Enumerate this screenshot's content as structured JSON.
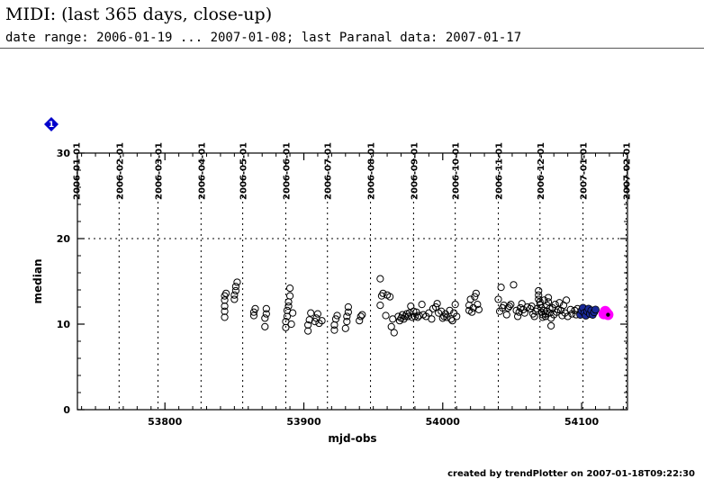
{
  "header": {
    "title": "MIDI: (last 365 days, close-up)",
    "subtitle": "date range: 2006-01-19 ... 2007-01-08; last Paranal data: 2007-01-17"
  },
  "footer": {
    "text": "created by trendPlotter on 2007-01-18T09:22:30"
  },
  "marker": {
    "label": "1",
    "color": "#0000cc"
  },
  "chart_data": {
    "type": "scatter",
    "xlabel": "mjd-obs",
    "ylabel": "median",
    "xlim": [
      53737,
      54133
    ],
    "ylim": [
      0,
      30
    ],
    "x_ticks": [
      53800,
      53900,
      54000,
      54100
    ],
    "x_tick_labels": [
      "53800",
      "53900",
      "54000",
      "54100"
    ],
    "y_ticks": [
      0,
      10,
      20,
      30
    ],
    "y_tick_labels": [
      "0",
      "10",
      "20",
      "30"
    ],
    "reference_line_y": 20,
    "month_lines": [
      {
        "mjd": 53736,
        "label": "2006-01-01"
      },
      {
        "mjd": 53767,
        "label": "2006-02-01"
      },
      {
        "mjd": 53795,
        "label": "2006-03-01"
      },
      {
        "mjd": 53826,
        "label": "2006-04-01"
      },
      {
        "mjd": 53856,
        "label": "2006-05-01"
      },
      {
        "mjd": 53887,
        "label": "2006-06-01"
      },
      {
        "mjd": 53917,
        "label": "2006-07-01"
      },
      {
        "mjd": 53948,
        "label": "2006-08-01"
      },
      {
        "mjd": 53979,
        "label": "2006-09-01"
      },
      {
        "mjd": 54009,
        "label": "2006-10-01"
      },
      {
        "mjd": 54040,
        "label": "2006-11-01"
      },
      {
        "mjd": 54070,
        "label": "2006-12-01"
      },
      {
        "mjd": 54101,
        "label": "2007-01-01"
      },
      {
        "mjd": 54132,
        "label": "2007-02-01"
      }
    ],
    "colors": {
      "recent": "#1a2a9a",
      "latest": "#ff00ff",
      "grid": "#000000"
    },
    "series": [
      {
        "style": "open",
        "points": [
          [
            53843,
            10.8
          ],
          [
            53843,
            11.5
          ],
          [
            53843,
            12.1
          ],
          [
            53843,
            12.8
          ],
          [
            53843,
            13.3
          ],
          [
            53844,
            13.6
          ],
          [
            53850,
            12.9
          ],
          [
            53850,
            13.4
          ],
          [
            53851,
            13.9
          ],
          [
            53851,
            14.4
          ],
          [
            53852,
            14.9
          ],
          [
            53864,
            11.0
          ],
          [
            53864,
            11.4
          ],
          [
            53865,
            11.8
          ],
          [
            53872,
            9.7
          ],
          [
            53872,
            10.7
          ],
          [
            53873,
            11.2
          ],
          [
            53873,
            11.8
          ],
          [
            53887,
            9.6
          ],
          [
            53887,
            10.3
          ],
          [
            53888,
            10.9
          ],
          [
            53888,
            11.6
          ],
          [
            53889,
            12.1
          ],
          [
            53889,
            12.6
          ],
          [
            53890,
            13.3
          ],
          [
            53890,
            14.2
          ],
          [
            53891,
            10.0
          ],
          [
            53892,
            11.3
          ],
          [
            53903,
            9.2
          ],
          [
            53903,
            9.9
          ],
          [
            53904,
            10.5
          ],
          [
            53905,
            11.3
          ],
          [
            53908,
            10.3
          ],
          [
            53909,
            10.7
          ],
          [
            53910,
            11.2
          ],
          [
            53911,
            10.1
          ],
          [
            53913,
            10.4
          ],
          [
            53922,
            9.3
          ],
          [
            53922,
            9.9
          ],
          [
            53923,
            10.6
          ],
          [
            53924,
            11.0
          ],
          [
            53930,
            9.5
          ],
          [
            53931,
            10.3
          ],
          [
            53931,
            10.9
          ],
          [
            53932,
            11.4
          ],
          [
            53932,
            12.0
          ],
          [
            53940,
            10.4
          ],
          [
            53941,
            10.9
          ],
          [
            53942,
            11.1
          ],
          [
            53955,
            15.3
          ],
          [
            53955,
            12.2
          ],
          [
            53956,
            13.3
          ],
          [
            53957,
            13.6
          ],
          [
            53959,
            11.0
          ],
          [
            53960,
            13.4
          ],
          [
            53962,
            13.2
          ],
          [
            53963,
            9.7
          ],
          [
            53964,
            10.6
          ],
          [
            53965,
            9.0
          ],
          [
            53968,
            10.9
          ],
          [
            53969,
            10.4
          ],
          [
            53970,
            10.7
          ],
          [
            53971,
            11.1
          ],
          [
            53972,
            10.6
          ],
          [
            53973,
            10.9
          ],
          [
            53974,
            11.2
          ],
          [
            53975,
            10.9
          ],
          [
            53976,
            11.3
          ],
          [
            53977,
            12.1
          ],
          [
            53978,
            10.8
          ],
          [
            53979,
            11.5
          ],
          [
            53980,
            10.9
          ],
          [
            53981,
            11.4
          ],
          [
            53982,
            10.8
          ],
          [
            53983,
            11.0
          ],
          [
            53985,
            12.3
          ],
          [
            53986,
            11.1
          ],
          [
            53988,
            10.9
          ],
          [
            53990,
            11.3
          ],
          [
            53992,
            10.6
          ],
          [
            53993,
            11.8
          ],
          [
            53995,
            12.0
          ],
          [
            53996,
            12.4
          ],
          [
            53997,
            11.3
          ],
          [
            53999,
            11.5
          ],
          [
            54000,
            10.7
          ],
          [
            54001,
            10.9
          ],
          [
            54002,
            11.2
          ],
          [
            54003,
            10.8
          ],
          [
            54005,
            11.6
          ],
          [
            54006,
            10.6
          ],
          [
            54007,
            10.4
          ],
          [
            54008,
            11.3
          ],
          [
            54009,
            12.3
          ],
          [
            54010,
            10.9
          ],
          [
            54019,
            11.6
          ],
          [
            54019,
            12.2
          ],
          [
            54020,
            12.9
          ],
          [
            54021,
            11.4
          ],
          [
            54022,
            11.9
          ],
          [
            54023,
            13.2
          ],
          [
            54024,
            13.6
          ],
          [
            54025,
            12.3
          ],
          [
            54026,
            11.7
          ],
          [
            54040,
            12.9
          ],
          [
            54041,
            11.5
          ],
          [
            54042,
            14.3
          ],
          [
            54043,
            11.9
          ],
          [
            54044,
            12.2
          ],
          [
            54046,
            11.1
          ],
          [
            54047,
            11.9
          ],
          [
            54048,
            12.1
          ],
          [
            54049,
            12.3
          ],
          [
            54051,
            14.6
          ],
          [
            54053,
            11.6
          ],
          [
            54054,
            10.9
          ],
          [
            54055,
            11.4
          ],
          [
            54056,
            11.9
          ],
          [
            54057,
            12.4
          ],
          [
            54058,
            11.7
          ],
          [
            54059,
            11.3
          ],
          [
            54061,
            12.0
          ],
          [
            54063,
            11.8
          ],
          [
            54064,
            12.1
          ],
          [
            54065,
            11.2
          ],
          [
            54066,
            10.9
          ],
          [
            54067,
            11.5
          ],
          [
            54068,
            11.8
          ],
          [
            54069,
            13.9
          ],
          [
            54069,
            13.4
          ],
          [
            54069,
            12.9
          ],
          [
            54070,
            12.6
          ],
          [
            54070,
            12.3
          ],
          [
            54071,
            11.9
          ],
          [
            54071,
            11.4
          ],
          [
            54072,
            11.1
          ],
          [
            54072,
            10.8
          ],
          [
            54073,
            11.6
          ],
          [
            54073,
            12.8
          ],
          [
            54074,
            11.2
          ],
          [
            54074,
            10.9
          ],
          [
            54075,
            11.5
          ],
          [
            54075,
            12.2
          ],
          [
            54076,
            13.1
          ],
          [
            54076,
            12.6
          ],
          [
            54077,
            11.8
          ],
          [
            54077,
            11.3
          ],
          [
            54078,
            10.7
          ],
          [
            54078,
            9.8
          ],
          [
            54079,
            11.9
          ],
          [
            54080,
            11.1
          ],
          [
            54081,
            12.3
          ],
          [
            54082,
            11.4
          ],
          [
            54083,
            11.7
          ],
          [
            54084,
            12.5
          ],
          [
            54085,
            11.6
          ],
          [
            54086,
            11.0
          ],
          [
            54087,
            12.2
          ],
          [
            54088,
            11.3
          ],
          [
            54089,
            12.8
          ],
          [
            54090,
            10.9
          ],
          [
            54092,
            11.7
          ],
          [
            54093,
            11.2
          ],
          [
            54095,
            11.6
          ],
          [
            54096,
            11.1
          ],
          [
            54097,
            11.8
          ]
        ]
      },
      {
        "style": "filled-recent",
        "points": [
          [
            54099,
            11.1
          ],
          [
            54100,
            11.6
          ],
          [
            54101,
            11.9
          ],
          [
            54102,
            11.3
          ],
          [
            54103,
            11.0
          ],
          [
            54104,
            11.5
          ],
          [
            54105,
            11.8
          ],
          [
            54106,
            11.2
          ],
          [
            54107,
            11.6
          ],
          [
            54108,
            11.1
          ],
          [
            54109,
            11.4
          ],
          [
            54110,
            11.7
          ]
        ]
      },
      {
        "style": "filled-latest",
        "points": [
          [
            54116,
            11.2
          ],
          [
            54117,
            11.5
          ],
          [
            54118,
            11.3
          ],
          [
            54119,
            11.1
          ]
        ]
      }
    ]
  }
}
